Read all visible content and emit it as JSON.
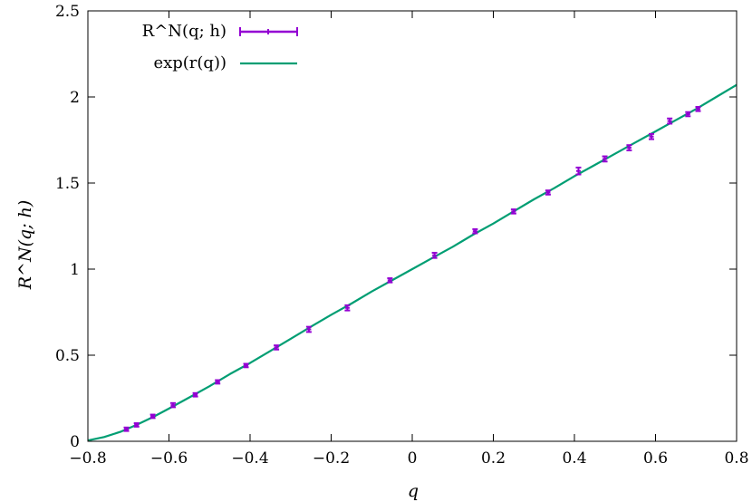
{
  "chart_data": {
    "type": "scatter",
    "xlabel": "q",
    "ylabel": "R^N(q; h)",
    "xlim": [
      -0.8,
      0.8
    ],
    "ylim": [
      0,
      2.5
    ],
    "xticks": [
      -0.8,
      -0.6,
      -0.4,
      -0.2,
      0,
      0.2,
      0.4,
      0.6,
      0.8
    ],
    "yticks": [
      0,
      0.5,
      1,
      1.5,
      2,
      2.5
    ],
    "xtick_labels": [
      "−0.8",
      "−0.6",
      "−0.4",
      "−0.2",
      "0",
      "0.2",
      "0.4",
      "0.6",
      "0.8"
    ],
    "ytick_labels": [
      "0",
      "0.5",
      "1",
      "1.5",
      "2",
      "2.5"
    ],
    "grid": false,
    "legend_position": "top-left",
    "series": [
      {
        "name": "R^N(q; h)",
        "kind": "points-with-errorbars",
        "color": "#9400d3",
        "points": [
          {
            "x": -0.705,
            "y": 0.07,
            "err": 0.01
          },
          {
            "x": -0.68,
            "y": 0.095,
            "err": 0.01
          },
          {
            "x": -0.64,
            "y": 0.145,
            "err": 0.01
          },
          {
            "x": -0.59,
            "y": 0.21,
            "err": 0.012
          },
          {
            "x": -0.535,
            "y": 0.27,
            "err": 0.01
          },
          {
            "x": -0.48,
            "y": 0.345,
            "err": 0.01
          },
          {
            "x": -0.41,
            "y": 0.44,
            "err": 0.01
          },
          {
            "x": -0.335,
            "y": 0.545,
            "err": 0.012
          },
          {
            "x": -0.255,
            "y": 0.65,
            "err": 0.015
          },
          {
            "x": -0.16,
            "y": 0.775,
            "err": 0.015
          },
          {
            "x": -0.055,
            "y": 0.935,
            "err": 0.012
          },
          {
            "x": 0.055,
            "y": 1.08,
            "err": 0.015
          },
          {
            "x": 0.155,
            "y": 1.22,
            "err": 0.012
          },
          {
            "x": 0.25,
            "y": 1.335,
            "err": 0.012
          },
          {
            "x": 0.335,
            "y": 1.445,
            "err": 0.012
          },
          {
            "x": 0.41,
            "y": 1.57,
            "err": 0.02
          },
          {
            "x": 0.475,
            "y": 1.64,
            "err": 0.015
          },
          {
            "x": 0.535,
            "y": 1.705,
            "err": 0.015
          },
          {
            "x": 0.59,
            "y": 1.77,
            "err": 0.015
          },
          {
            "x": 0.635,
            "y": 1.86,
            "err": 0.015
          },
          {
            "x": 0.68,
            "y": 1.9,
            "err": 0.012
          },
          {
            "x": 0.705,
            "y": 1.93,
            "err": 0.012
          }
        ]
      },
      {
        "name": "exp(r(q))",
        "kind": "line",
        "color": "#009e73",
        "points": [
          {
            "x": -0.8,
            "y": 0.005
          },
          {
            "x": -0.76,
            "y": 0.025
          },
          {
            "x": -0.72,
            "y": 0.055
          },
          {
            "x": -0.68,
            "y": 0.095
          },
          {
            "x": -0.64,
            "y": 0.14
          },
          {
            "x": -0.6,
            "y": 0.19
          },
          {
            "x": -0.55,
            "y": 0.255
          },
          {
            "x": -0.5,
            "y": 0.32
          },
          {
            "x": -0.45,
            "y": 0.39
          },
          {
            "x": -0.4,
            "y": 0.455
          },
          {
            "x": -0.35,
            "y": 0.525
          },
          {
            "x": -0.3,
            "y": 0.595
          },
          {
            "x": -0.25,
            "y": 0.665
          },
          {
            "x": -0.2,
            "y": 0.735
          },
          {
            "x": -0.15,
            "y": 0.8
          },
          {
            "x": -0.1,
            "y": 0.87
          },
          {
            "x": -0.05,
            "y": 0.935
          },
          {
            "x": 0.0,
            "y": 1.0
          },
          {
            "x": 0.05,
            "y": 1.065
          },
          {
            "x": 0.1,
            "y": 1.13
          },
          {
            "x": 0.15,
            "y": 1.2
          },
          {
            "x": 0.2,
            "y": 1.265
          },
          {
            "x": 0.25,
            "y": 1.335
          },
          {
            "x": 0.3,
            "y": 1.405
          },
          {
            "x": 0.35,
            "y": 1.47
          },
          {
            "x": 0.4,
            "y": 1.54
          },
          {
            "x": 0.45,
            "y": 1.605
          },
          {
            "x": 0.5,
            "y": 1.67
          },
          {
            "x": 0.55,
            "y": 1.735
          },
          {
            "x": 0.6,
            "y": 1.8
          },
          {
            "x": 0.65,
            "y": 1.865
          },
          {
            "x": 0.7,
            "y": 1.93
          },
          {
            "x": 0.75,
            "y": 2.0
          },
          {
            "x": 0.8,
            "y": 2.07
          }
        ]
      }
    ]
  }
}
